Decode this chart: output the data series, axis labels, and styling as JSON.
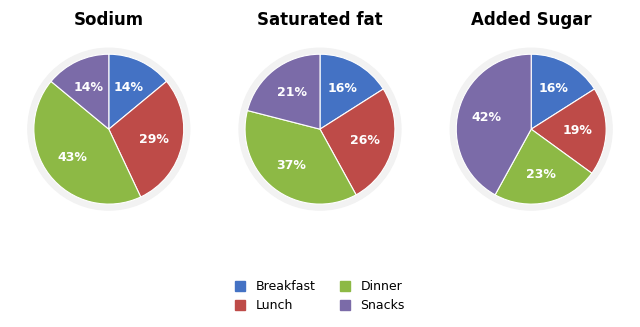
{
  "charts": [
    {
      "title": "Sodium",
      "values": [
        14,
        29,
        43,
        14
      ],
      "labels": [
        "14%",
        "29%",
        "43%",
        "14%"
      ],
      "startangle": 90
    },
    {
      "title": "Saturated fat",
      "values": [
        16,
        26,
        37,
        21
      ],
      "labels": [
        "16%",
        "26%",
        "37%",
        "21%"
      ],
      "startangle": 90
    },
    {
      "title": "Added Sugar",
      "values": [
        16,
        19,
        23,
        42
      ],
      "labels": [
        "16%",
        "19%",
        "23%",
        "42%"
      ],
      "startangle": 90
    }
  ],
  "colors": [
    "#4472C4",
    "#BE4B48",
    "#8DB945",
    "#7B6BA8"
  ],
  "legend_labels": [
    "Breakfast",
    "Lunch",
    "Dinner",
    "Snacks"
  ],
  "legend_colors": [
    "#4472C4",
    "#BE4B48",
    "#8DB945",
    "#7B6BA8"
  ],
  "text_color": "#FFFFFF",
  "font_size_title": 12,
  "font_size_label": 9,
  "bg_color": "#F2F2F2"
}
